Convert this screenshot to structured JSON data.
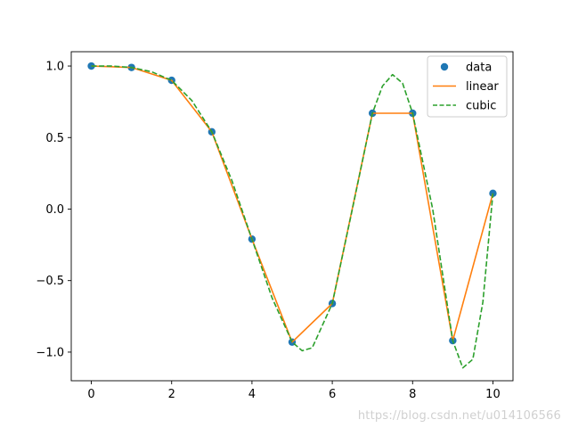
{
  "chart_data": {
    "type": "line",
    "title": "",
    "xlabel": "",
    "ylabel": "",
    "xlim": [
      -0.5,
      10.5
    ],
    "ylim": [
      -1.2,
      1.1
    ],
    "xticks": [
      0,
      2,
      4,
      6,
      8,
      10
    ],
    "xtick_labels": [
      "0",
      "2",
      "4",
      "6",
      "8",
      "10"
    ],
    "yticks": [
      1.0,
      0.5,
      0.0,
      -0.5,
      -1.0
    ],
    "ytick_labels": [
      "1.0",
      "0.5",
      "0.0",
      "−0.5",
      "−1.0"
    ],
    "grid": false,
    "legend_position": "top-right",
    "series": [
      {
        "name": "data",
        "style": "markers",
        "color": "#1f77b4",
        "x": [
          0,
          1,
          2,
          3,
          4,
          5,
          6,
          7,
          8,
          9,
          10
        ],
        "y": [
          1.0,
          0.99,
          0.9,
          0.54,
          -0.21,
          -0.93,
          -0.66,
          0.67,
          0.67,
          -0.92,
          0.11
        ]
      },
      {
        "name": "linear",
        "style": "solid",
        "color": "#ff7f0e",
        "x": [
          0,
          1,
          2,
          3,
          4,
          5,
          6,
          7,
          8,
          9,
          10
        ],
        "y": [
          1.0,
          0.99,
          0.9,
          0.54,
          -0.21,
          -0.93,
          -0.66,
          0.67,
          0.67,
          -0.92,
          0.11
        ]
      },
      {
        "name": "cubic",
        "style": "dashed",
        "color": "#2ca02c",
        "x": [
          0,
          0.5,
          1,
          1.5,
          2,
          2.5,
          3,
          3.5,
          4,
          4.5,
          5,
          5.25,
          5.5,
          6,
          6.5,
          7,
          7.25,
          7.5,
          7.75,
          8,
          8.5,
          9,
          9.25,
          9.5,
          9.75,
          10
        ],
        "y": [
          1.0,
          1.0,
          0.99,
          0.96,
          0.9,
          0.76,
          0.54,
          0.2,
          -0.21,
          -0.62,
          -0.93,
          -0.99,
          -0.97,
          -0.66,
          0.0,
          0.67,
          0.86,
          0.94,
          0.88,
          0.67,
          0.0,
          -0.92,
          -1.11,
          -1.05,
          -0.65,
          0.11
        ]
      }
    ]
  },
  "watermark": "https://blog.csdn.net/u014106566"
}
